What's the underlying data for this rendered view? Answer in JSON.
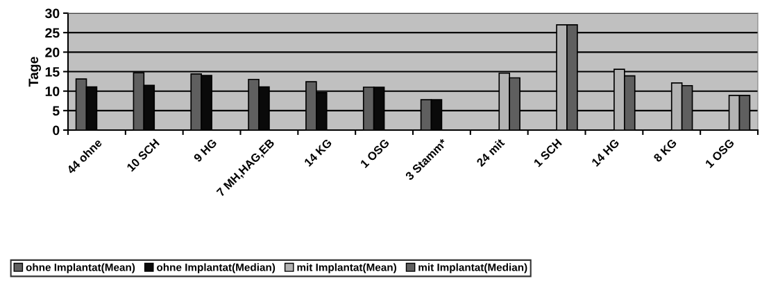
{
  "chart_data": {
    "type": "bar",
    "ylabel": "Tage",
    "categories": [
      "44 ohne",
      "10 SCH",
      "9 HG",
      "7 MH,HAG,EB",
      "14 KG",
      "1 OSG",
      "3 Stamm*",
      "24 mit",
      "1 SCH",
      "14 HG",
      "8 KG",
      "1 OSG"
    ],
    "series": [
      {
        "name": "ohne Implantat(Mean)",
        "color": "#5f5f5f",
        "values": [
          13.1,
          14.7,
          14.4,
          13.0,
          12.4,
          11.0,
          7.8,
          null,
          null,
          null,
          null,
          null
        ]
      },
      {
        "name": "ohne Implantat(Median)",
        "color": "#0a0a0a",
        "values": [
          11.1,
          11.5,
          14.0,
          11.1,
          9.6,
          11.0,
          7.8,
          null,
          null,
          null,
          null,
          null
        ]
      },
      {
        "name": "mit Implantat(Mean)",
        "color": "#b3b3b3",
        "values": [
          null,
          null,
          null,
          null,
          null,
          null,
          null,
          14.6,
          27.0,
          15.6,
          12.1,
          8.9
        ]
      },
      {
        "name": "mit Implantat(Median)",
        "color": "#5f5f5f",
        "values": [
          null,
          null,
          null,
          null,
          null,
          null,
          null,
          13.4,
          27.0,
          13.9,
          11.4,
          8.9
        ]
      }
    ],
    "ylim": [
      0,
      30
    ],
    "yticks": [
      0,
      5,
      10,
      15,
      20,
      25,
      30
    ],
    "grid": "y",
    "legend": "bottom"
  }
}
